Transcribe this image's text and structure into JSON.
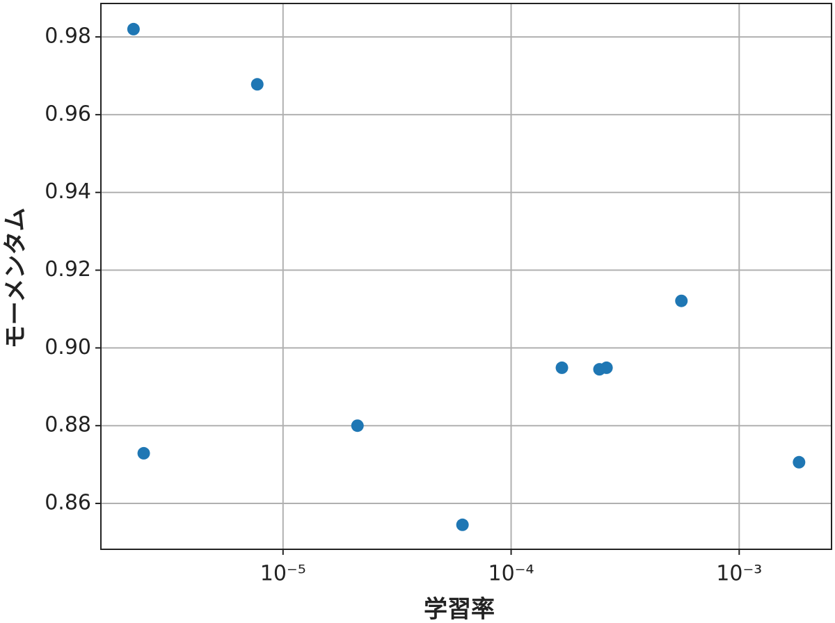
{
  "chart_data": {
    "type": "scatter",
    "xlabel": "学習率",
    "ylabel": "モーメンタム",
    "x": [
      2.21e-06,
      2.45e-06,
      7.71e-06,
      2.12e-05,
      6.12e-05,
      0.000167,
      0.000244,
      0.000262,
      0.000558,
      0.00183
    ],
    "series": [
      {
        "color": "#1f77b4",
        "values": [
          0.982,
          0.8729,
          0.9678,
          0.88,
          0.8545,
          0.8949,
          0.8945,
          0.8949,
          0.9121,
          0.8706
        ]
      }
    ],
    "xscale": "log",
    "xlim": [
      1.59e-06,
      0.00254
    ],
    "xticks": [
      {
        "value": 1e-05,
        "label": "10⁻⁵"
      },
      {
        "value": 0.0001,
        "label": "10⁻⁴"
      },
      {
        "value": 0.001,
        "label": "10⁻³"
      }
    ],
    "ylim": [
      0.8482,
      0.9886
    ],
    "yticks": [
      0.86,
      0.88,
      {
        "value": 0.9,
        "label": "0.90"
      },
      0.92,
      0.94,
      0.96,
      0.98
    ],
    "grid": true
  }
}
